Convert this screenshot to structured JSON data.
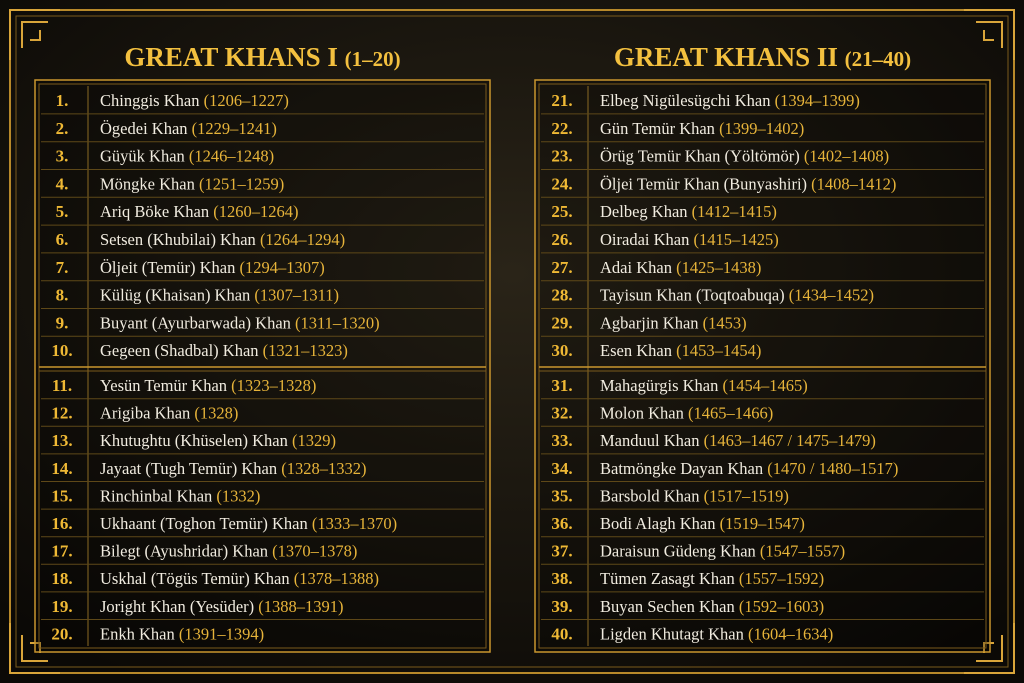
{
  "panels": [
    {
      "title": "GREAT KHANS I",
      "range": "(1–20)",
      "rows": [
        {
          "number": "1.",
          "name": "Chinggis Khan",
          "years": "(1206–1227)"
        },
        {
          "number": "2.",
          "name": "Ögedei Khan",
          "years": "(1229–1241)"
        },
        {
          "number": "3.",
          "name": "Güyük Khan",
          "years": "(1246–1248)"
        },
        {
          "number": "4.",
          "name": "Möngke Khan",
          "years": "(1251–1259)"
        },
        {
          "number": "5.",
          "name": "Ariq Böke Khan",
          "years": "(1260–1264)"
        },
        {
          "number": "6.",
          "name": "Setsen (Khubilai) Khan",
          "years": "(1264–1294)"
        },
        {
          "number": "7.",
          "name": "Öljeit (Temür) Khan",
          "years": "(1294–1307)"
        },
        {
          "number": "8.",
          "name": "Külüg (Khaisan) Khan",
          "years": "(1307–1311)"
        },
        {
          "number": "9.",
          "name": "Buyant (Ayurbarwada) Khan",
          "years": "(1311–1320)"
        },
        {
          "number": "10.",
          "name": "Gegeen (Shadbal) Khan",
          "years": "(1321–1323)"
        },
        {
          "number": "11.",
          "name": "Yesün Temür Khan",
          "years": "(1323–1328)"
        },
        {
          "number": "12.",
          "name": "Arigiba Khan",
          "years": "(1328)"
        },
        {
          "number": "13.",
          "name": "Khutughtu (Khüselen) Khan",
          "years": "(1329)"
        },
        {
          "number": "14.",
          "name": "Jayaat (Tugh Temür) Khan",
          "years": "(1328–1332)"
        },
        {
          "number": "15.",
          "name": "Rinchinbal Khan",
          "years": "(1332)"
        },
        {
          "number": "16.",
          "name": "Ukhaant (Toghon Temür) Khan",
          "years": "(1333–1370)"
        },
        {
          "number": "17.",
          "name": "Bilegt (Ayushridar) Khan",
          "years": "(1370–1378)"
        },
        {
          "number": "18.",
          "name": "Uskhal (Tögüs Temür) Khan",
          "years": "(1378–1388)"
        },
        {
          "number": "19.",
          "name": "Joright Khan (Yesüder)",
          "years": "(1388–1391)"
        },
        {
          "number": "20.",
          "name": "Enkh Khan",
          "years": "(1391–1394)"
        }
      ]
    },
    {
      "title": "GREAT KHANS II",
      "range": "(21–40)",
      "rows": [
        {
          "number": "21.",
          "name": "Elbeg Nigülesügchi Khan",
          "years": "(1394–1399)"
        },
        {
          "number": "22.",
          "name": "Gün Temür Khan",
          "years": "(1399–1402)"
        },
        {
          "number": "23.",
          "name": "Örüg Temür Khan (Yöltömör)",
          "years": "(1402–1408)"
        },
        {
          "number": "24.",
          "name": "Öljei Temür Khan (Bunyashiri)",
          "years": "(1408–1412)"
        },
        {
          "number": "25.",
          "name": "Delbeg Khan",
          "years": "(1412–1415)"
        },
        {
          "number": "26.",
          "name": "Oiradai Khan",
          "years": "(1415–1425)"
        },
        {
          "number": "27.",
          "name": "Adai Khan",
          "years": "(1425–1438)"
        },
        {
          "number": "28.",
          "name": "Tayisun Khan (Toqtoabuqa)",
          "years": "(1434–1452)"
        },
        {
          "number": "29.",
          "name": "Agbarjin Khan",
          "years": "(1453)"
        },
        {
          "number": "30.",
          "name": "Esen Khan",
          "years": "(1453–1454)"
        },
        {
          "number": "31.",
          "name": "Mahagürgis Khan",
          "years": "(1454–1465)"
        },
        {
          "number": "32.",
          "name": "Molon Khan",
          "years": "(1465–1466)"
        },
        {
          "number": "33.",
          "name": "Manduul Khan",
          "years": "(1463–1467 / 1475–1479)"
        },
        {
          "number": "34.",
          "name": "Batmöngke Dayan Khan",
          "years": "(1470 / 1480–1517)"
        },
        {
          "number": "35.",
          "name": "Barsbold Khan",
          "years": "(1517–1519)"
        },
        {
          "number": "36.",
          "name": "Bodi Alagh Khan",
          "years": "(1519–1547)"
        },
        {
          "number": "37.",
          "name": "Daraisun Güdeng Khan",
          "years": "(1547–1557)"
        },
        {
          "number": "38.",
          "name": "Tümen Zasagt Khan",
          "years": "(1557–1592)"
        },
        {
          "number": "39.",
          "name": "Buyan Sechen Khan",
          "years": "(1592–1603)"
        },
        {
          "number": "40.",
          "name": "Ligden Khutagt Khan",
          "years": "(1604–1634)"
        }
      ]
    }
  ]
}
